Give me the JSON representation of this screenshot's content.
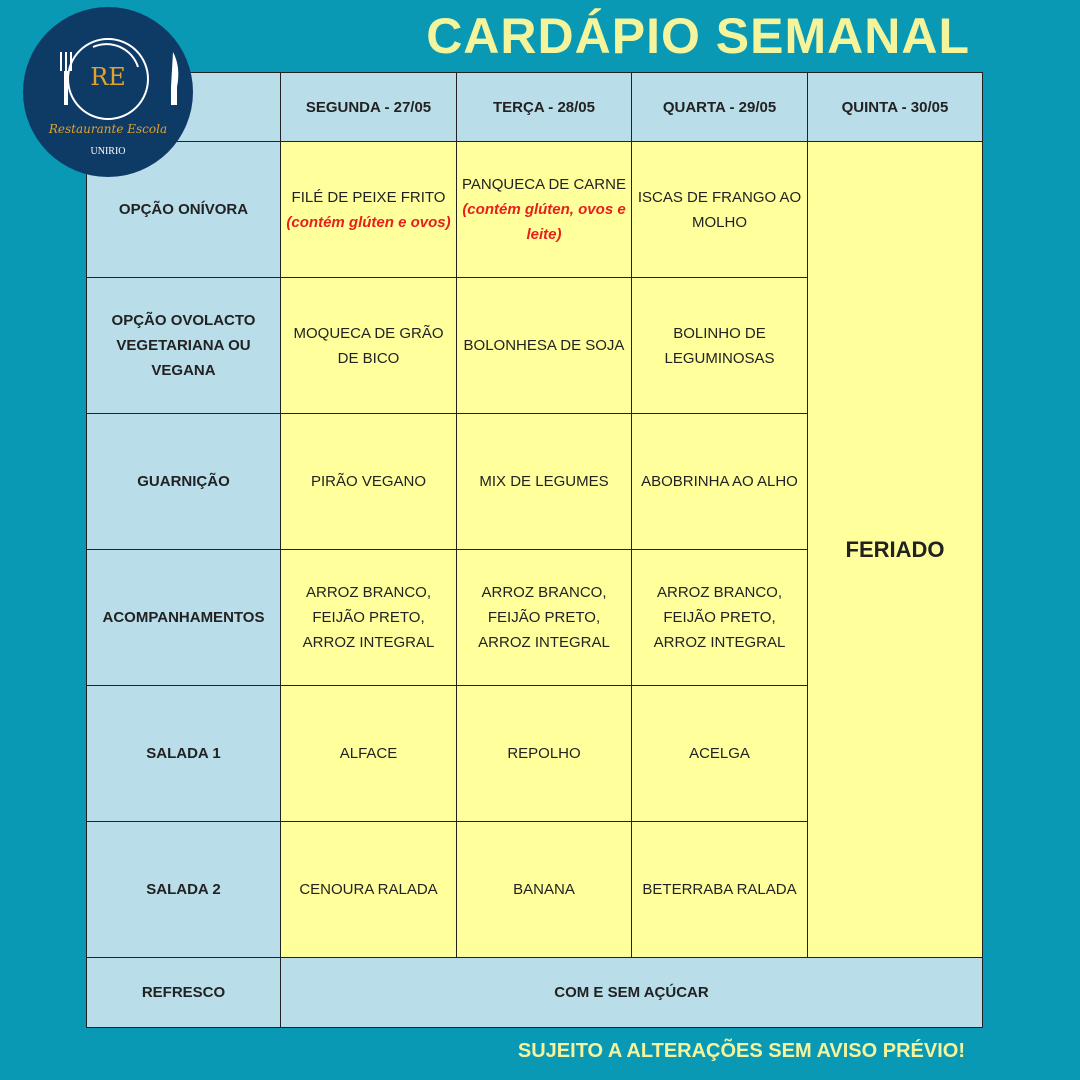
{
  "title": "CARDÁPIO SEMANAL",
  "footer": "SUJEITO A ALTERAÇÕES SEM AVISO PRÉVIO!",
  "logo": {
    "initials": "RE",
    "name": "Restaurante Escola",
    "org": "UNIRIO"
  },
  "colors": {
    "background": "#0a99b5",
    "title": "#f4f49c",
    "header_cell": "#b9dde9",
    "menu_cell": "#ffff9c",
    "allergen": "#e8201c"
  },
  "days": [
    "SEGUNDA - 27/05",
    "TERÇA - 28/05",
    "QUARTA - 29/05",
    "QUINTA - 30/05"
  ],
  "rows": [
    {
      "label": "OPÇÃO ONÍVORA",
      "cells": [
        {
          "text": "FILÉ DE PEIXE FRITO",
          "note": "(contém glúten e ovos)"
        },
        {
          "text": "PANQUECA DE CARNE",
          "note": "(contém glúten, ovos e leite)"
        },
        {
          "text": "ISCAS DE FRANGO AO MOLHO"
        }
      ]
    },
    {
      "label": "OPÇÃO OVOLACTO VEGETARIANA OU VEGANA",
      "cells": [
        {
          "text": "MOQUECA DE GRÃO DE BICO"
        },
        {
          "text": "BOLONHESA DE SOJA"
        },
        {
          "text": "BOLINHO DE LEGUMINOSAS"
        }
      ]
    },
    {
      "label": "GUARNIÇÃO",
      "cells": [
        {
          "text": "PIRÃO VEGANO"
        },
        {
          "text": "MIX DE LEGUMES"
        },
        {
          "text": "ABOBRINHA AO ALHO"
        }
      ]
    },
    {
      "label": "ACOMPANHAMENTOS",
      "cells": [
        {
          "text": "ARROZ BRANCO, FEIJÃO PRETO, ARROZ INTEGRAL"
        },
        {
          "text": "ARROZ BRANCO, FEIJÃO PRETO, ARROZ INTEGRAL"
        },
        {
          "text": "ARROZ BRANCO, FEIJÃO PRETO, ARROZ INTEGRAL"
        }
      ]
    },
    {
      "label": "SALADA 1",
      "cells": [
        {
          "text": "ALFACE"
        },
        {
          "text": "REPOLHO"
        },
        {
          "text": "ACELGA"
        }
      ]
    },
    {
      "label": "SALADA 2",
      "cells": [
        {
          "text": "CENOURA RALADA"
        },
        {
          "text": "BANANA"
        },
        {
          "text": "BETERRABA RALADA"
        }
      ]
    }
  ],
  "holiday": "FERIADO",
  "refresco": {
    "label": "REFRESCO",
    "value": "COM E SEM AÇÚCAR"
  }
}
